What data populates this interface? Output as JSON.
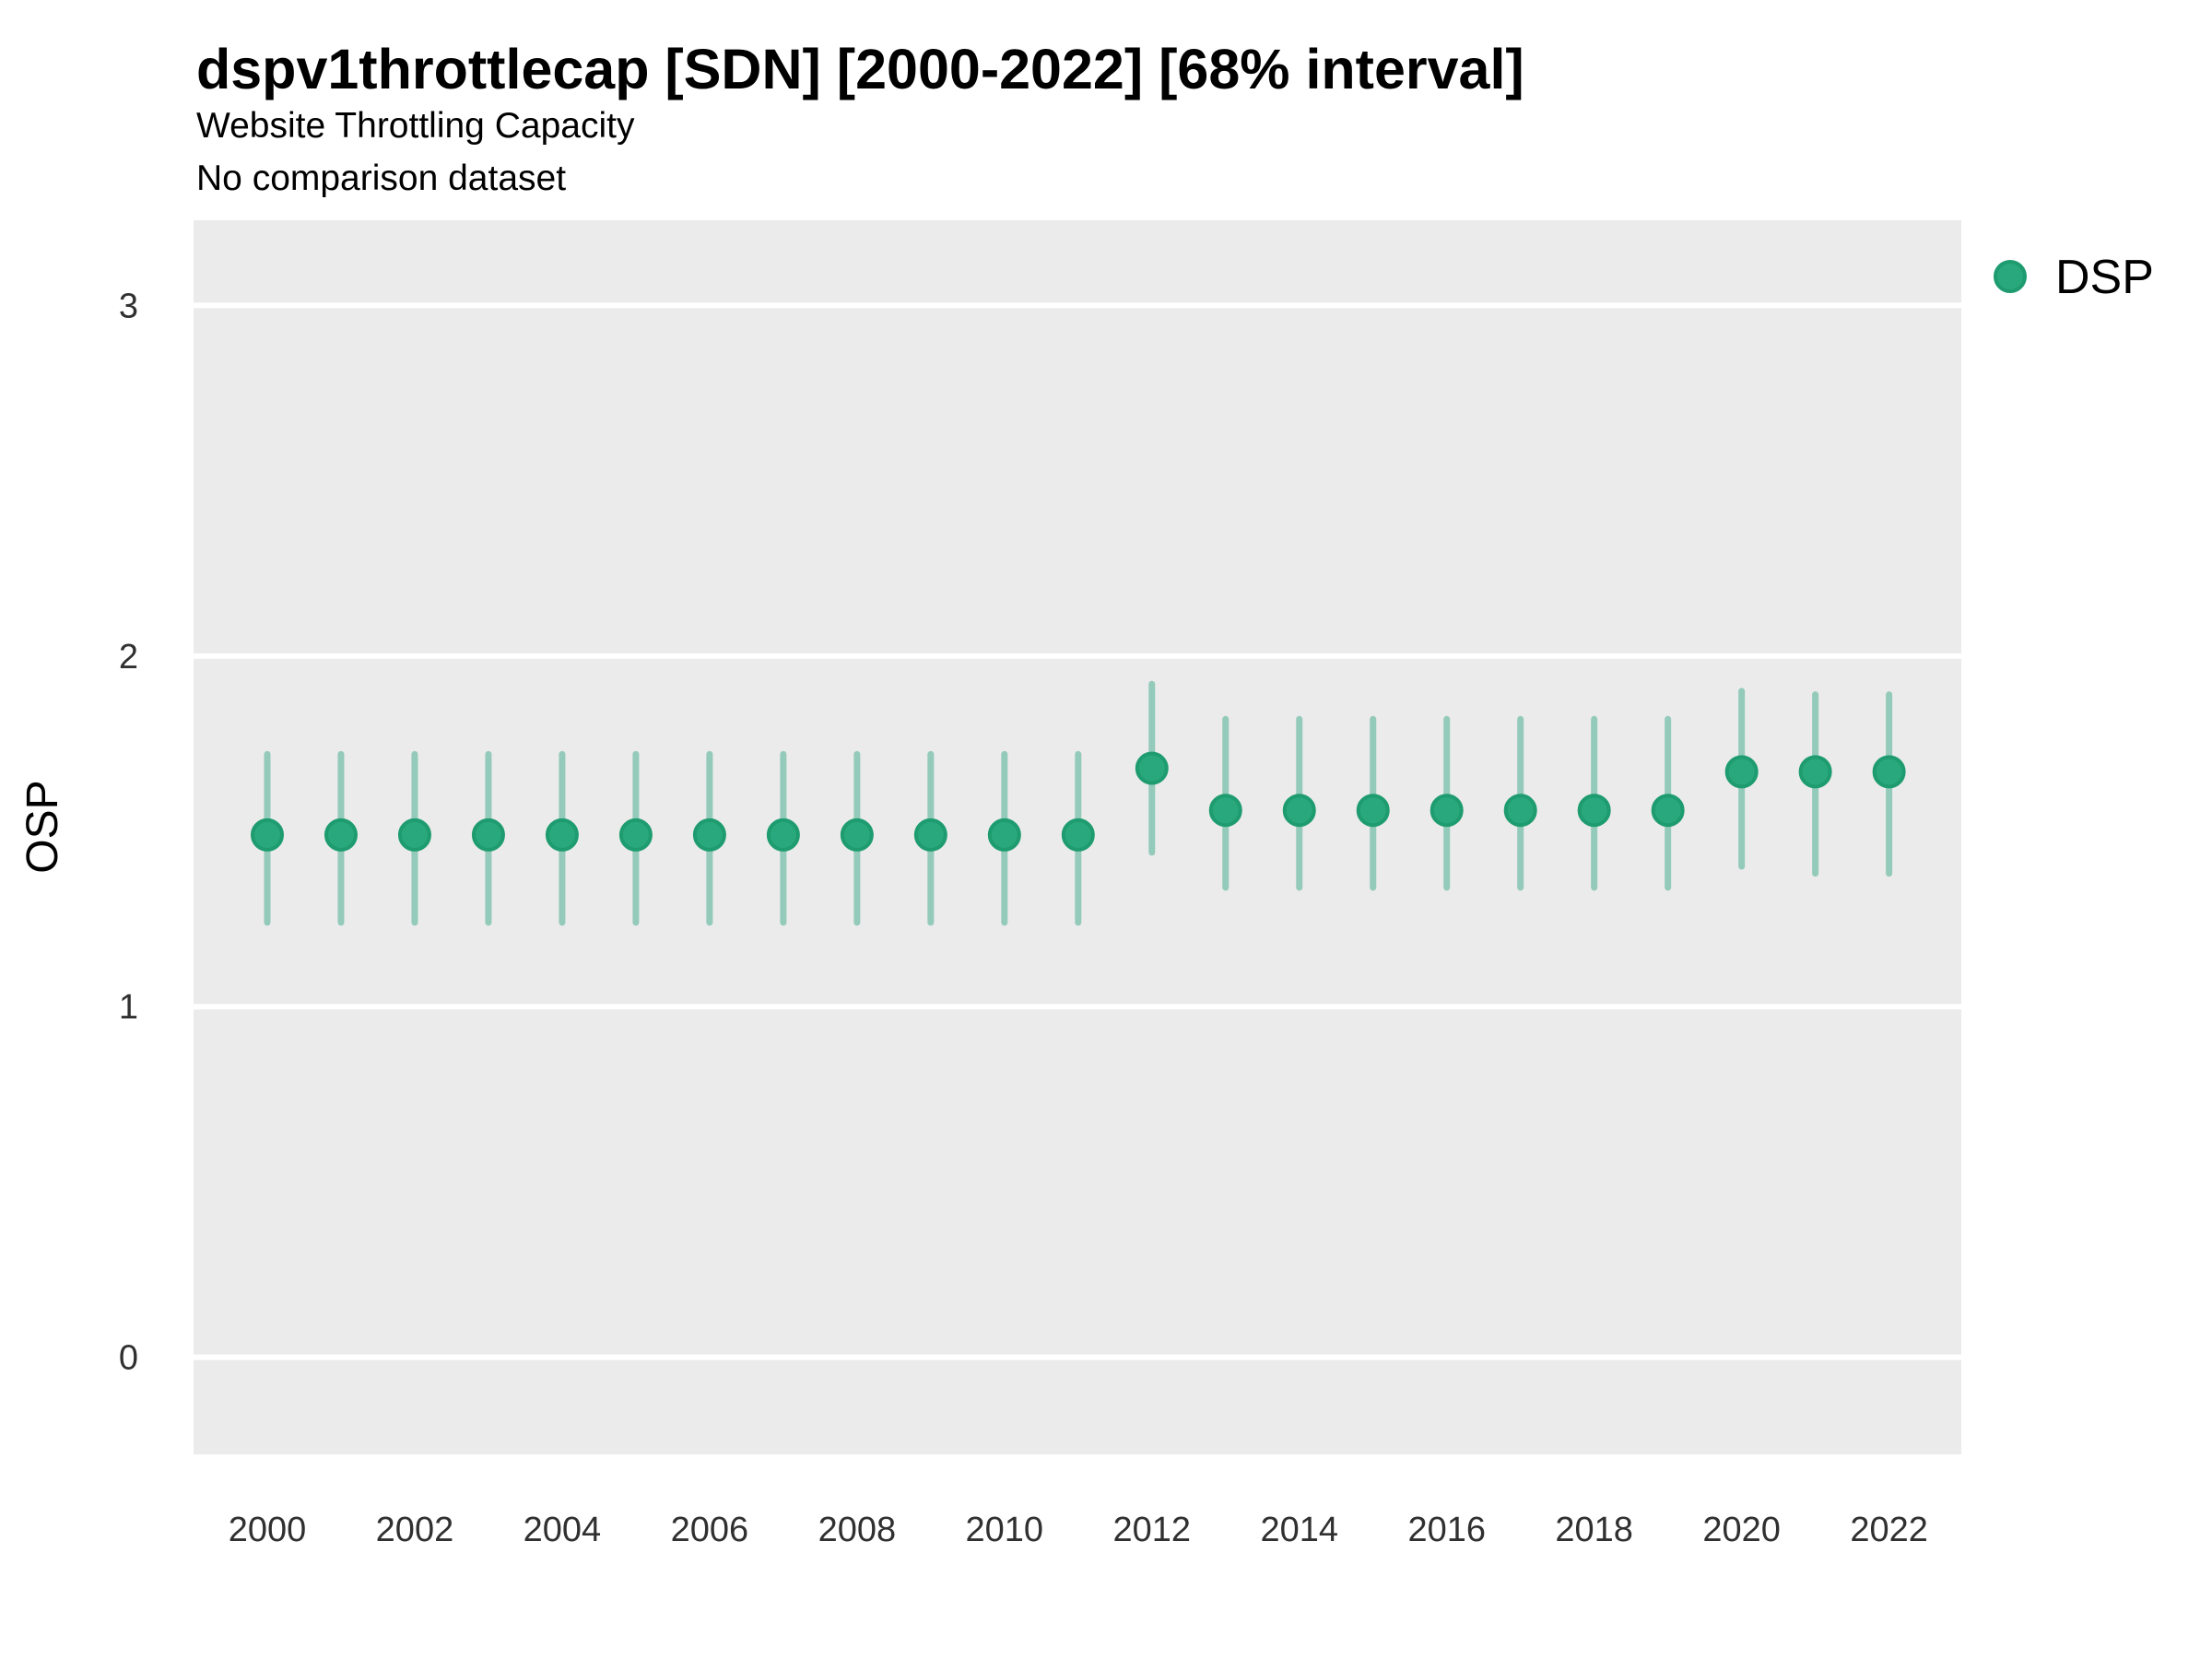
{
  "header": {
    "title": "dspv1throttlecap [SDN] [2000-2022] [68% interval]",
    "subtitle": "Website Throttling Capacity",
    "caption": "No comparison dataset"
  },
  "legend": {
    "label": "DSP",
    "position": "right"
  },
  "colors": {
    "background": "#ffffff",
    "panel_bg": "#ebebeb",
    "gridline": "#ffffff",
    "interval_line": "rgba(27,158,119,0.42)",
    "point_fill": "#2aa87d",
    "point_stroke": "#1e9c70",
    "legend_dot_fill": "#2aa87d",
    "legend_dot_stroke": "#1e9c70"
  },
  "chart_data": {
    "type": "scatter",
    "subtype": "pointrange",
    "title": "dspv1throttlecap [SDN] [2000-2022] [68% interval]",
    "subtitle": "Website Throttling Capacity",
    "caption": "No comparison dataset",
    "interval": "68%",
    "xlabel": "",
    "ylabel": "OSP",
    "legend_position": "right",
    "grid": "major horizontal white gridlines on gray panel",
    "xlim": [
      1999,
      2022.98
    ],
    "ylim": [
      -0.277,
      3.243
    ],
    "x_ticks": [
      2000,
      2002,
      2004,
      2006,
      2008,
      2010,
      2012,
      2014,
      2016,
      2018,
      2020,
      2022
    ],
    "y_ticks": [
      0,
      1,
      2,
      3
    ],
    "x": [
      2000,
      2001,
      2002,
      2003,
      2004,
      2005,
      2006,
      2007,
      2008,
      2009,
      2010,
      2011,
      2012,
      2013,
      2014,
      2015,
      2016,
      2017,
      2018,
      2019,
      2020,
      2021,
      2022
    ],
    "series": [
      {
        "name": "DSP",
        "estimates": [
          1.49,
          1.49,
          1.49,
          1.49,
          1.49,
          1.49,
          1.49,
          1.49,
          1.49,
          1.49,
          1.49,
          1.49,
          1.68,
          1.56,
          1.56,
          1.56,
          1.56,
          1.56,
          1.56,
          1.56,
          1.67,
          1.67,
          1.67
        ],
        "lower": [
          1.24,
          1.24,
          1.24,
          1.24,
          1.24,
          1.24,
          1.24,
          1.24,
          1.24,
          1.24,
          1.24,
          1.24,
          1.44,
          1.34,
          1.34,
          1.34,
          1.34,
          1.34,
          1.34,
          1.34,
          1.4,
          1.38,
          1.38
        ],
        "upper": [
          1.72,
          1.72,
          1.72,
          1.72,
          1.72,
          1.72,
          1.72,
          1.72,
          1.72,
          1.72,
          1.72,
          1.72,
          1.92,
          1.82,
          1.82,
          1.82,
          1.82,
          1.82,
          1.82,
          1.82,
          1.9,
          1.89,
          1.89
        ]
      }
    ]
  }
}
